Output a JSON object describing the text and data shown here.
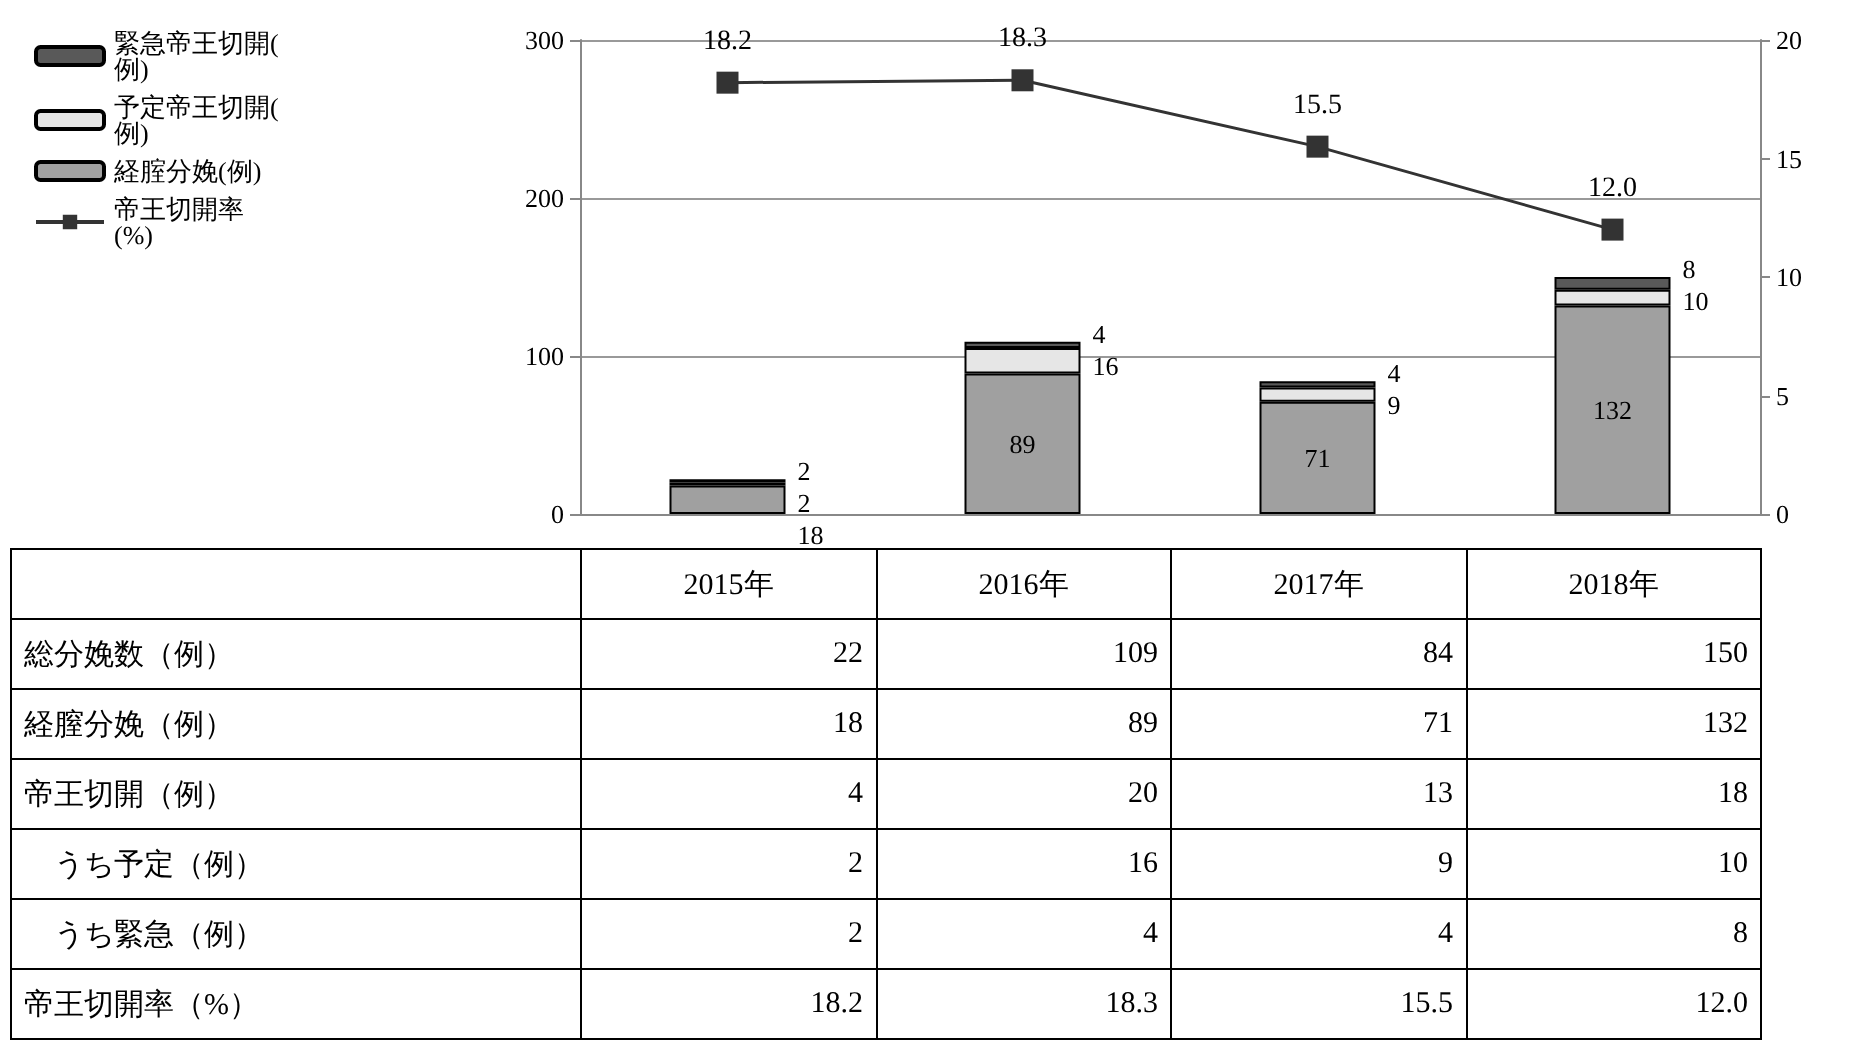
{
  "chart_data": {
    "type": "bar",
    "stacked": true,
    "categories": [
      "2015年",
      "2016年",
      "2017年",
      "2018年"
    ],
    "series": [
      {
        "name": "経腟分娩(例)",
        "color": "#a0a0a0",
        "values": [
          18,
          89,
          71,
          132
        ],
        "value_labels": [
          "18",
          "89",
          "71",
          "132"
        ]
      },
      {
        "name": "予定帝王切開(例)",
        "color": "#e6e6e6",
        "values": [
          2,
          16,
          9,
          10
        ],
        "value_labels": [
          "2",
          "16",
          "9",
          "10"
        ]
      },
      {
        "name": "緊急帝王切開(例)",
        "color": "#595959",
        "values": [
          2,
          4,
          4,
          8
        ],
        "value_labels": [
          "2",
          "4",
          "4",
          "8"
        ]
      },
      {
        "name": "帝王切開率(%)",
        "type": "line",
        "axis": "y2",
        "color": "#333333",
        "values": [
          18.2,
          18.3,
          15.5,
          12.0
        ],
        "value_labels": [
          "18.2",
          "18.3",
          "15.5",
          "12.0"
        ]
      }
    ],
    "ylim": [
      0,
      300
    ],
    "yticks": [
      0,
      100,
      200,
      300
    ],
    "y2lim": [
      0,
      20
    ],
    "y2ticks": [
      0,
      5,
      10,
      15,
      20
    ],
    "grid": "y",
    "legend": "left",
    "marker": "square",
    "line_style": "solid",
    "data_labels": true,
    "annotations": [
      "総分娩数（例）",
      "経膣分娩（例）",
      "帝王切開（例）",
      "　うち予定（例）",
      "　うち緊急（例）",
      "帝王切開率（%）",
      "22",
      "109",
      "84",
      "150",
      "4",
      "20",
      "13",
      "18"
    ]
  }
}
